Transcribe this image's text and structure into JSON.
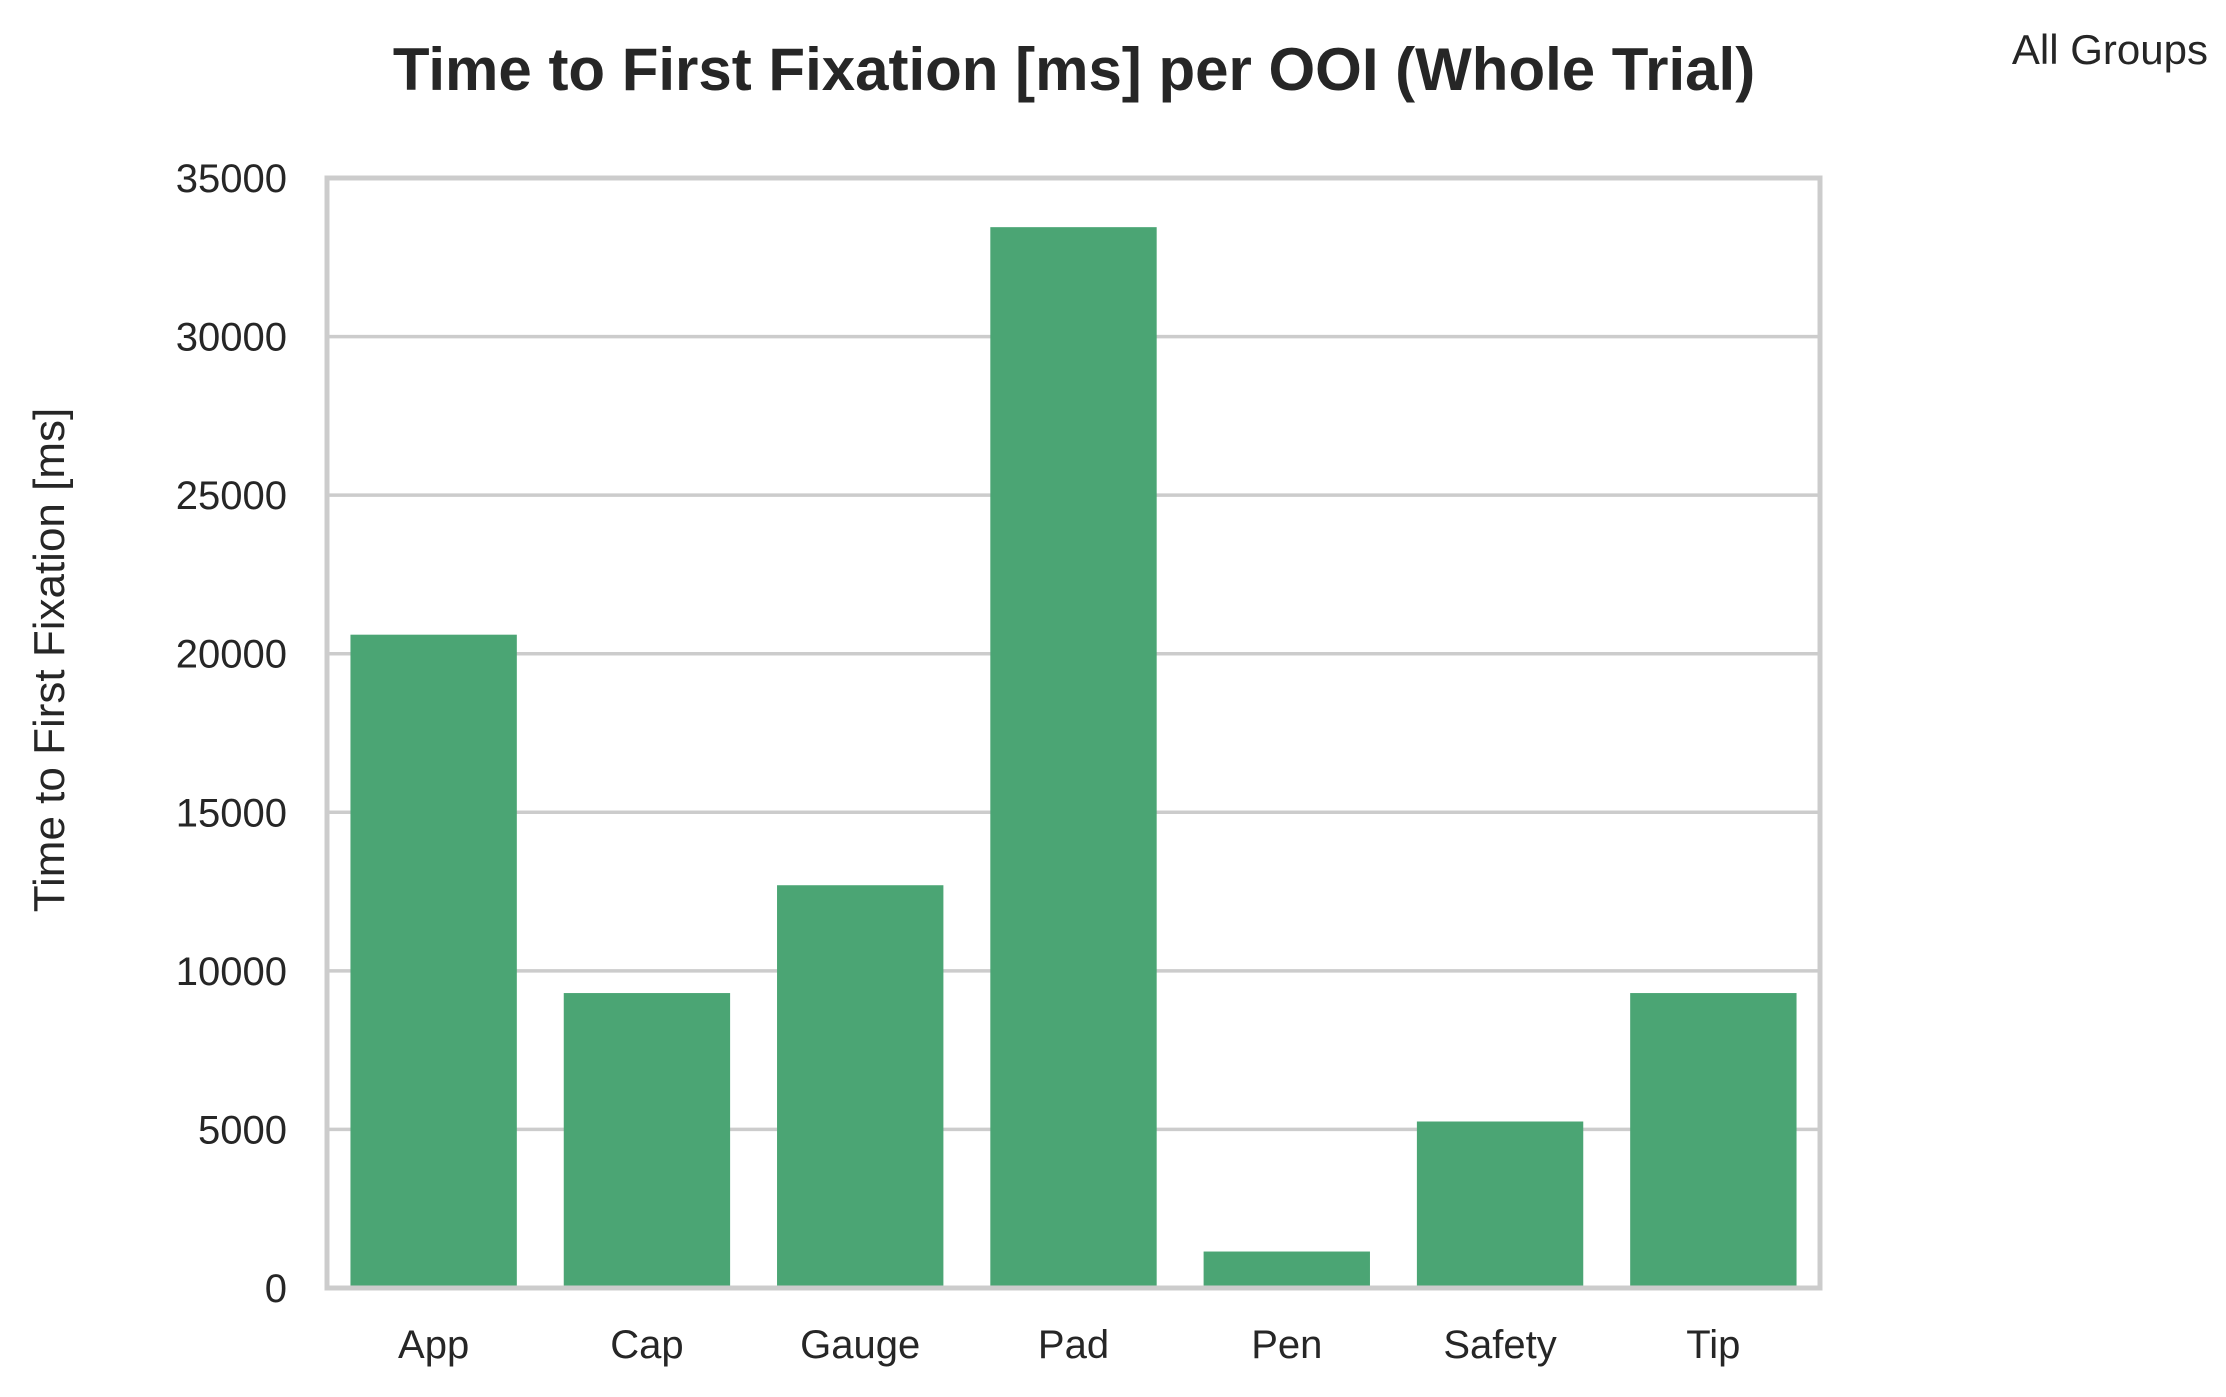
{
  "chart_data": {
    "type": "bar",
    "title": "Time to First Fixation [ms] per OOI (Whole Trial)",
    "annotation": "All Groups",
    "xlabel": "",
    "ylabel": "Time to First Fixation [ms]",
    "categories": [
      "App",
      "Cap",
      "Gauge",
      "Pad",
      "Pen",
      "Safety",
      "Tip"
    ],
    "values": [
      20600,
      9300,
      12700,
      33450,
      1150,
      5250,
      9300
    ],
    "ylim": [
      0,
      35000
    ],
    "yticks": [
      0,
      5000,
      10000,
      15000,
      20000,
      25000,
      30000,
      35000
    ],
    "ytick_labels": [
      "0",
      "5000",
      "10000",
      "15000",
      "20000",
      "25000",
      "30000",
      "35000"
    ],
    "grid": "horizontal",
    "colors": {
      "bar": "#4ba574",
      "grid": "#cccccc",
      "frame": "#cccccc",
      "text": "#262626"
    }
  }
}
